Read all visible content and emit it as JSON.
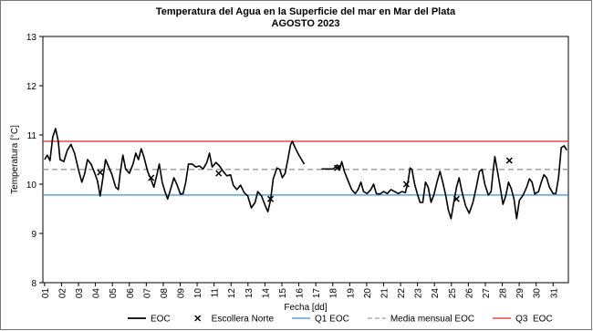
{
  "chart_data": {
    "type": "line",
    "title": "Temperatura del Agua en la Superficie del mar en Mar del Plata",
    "subtitle": "AGOSTO 2023",
    "x_label": "Fecha [dd]",
    "y_label": "Temperatura [°C]",
    "xlim": [
      0.9,
      31.9
    ],
    "ylim": [
      8,
      13
    ],
    "yticks": [
      8,
      9,
      10,
      11,
      12,
      13
    ],
    "xticks": [
      {
        "value": 1,
        "label": "01"
      },
      {
        "value": 2,
        "label": "02"
      },
      {
        "value": 3,
        "label": "03"
      },
      {
        "value": 4,
        "label": "04"
      },
      {
        "value": 5,
        "label": "05"
      },
      {
        "value": 6,
        "label": "06"
      },
      {
        "value": 7,
        "label": "07"
      },
      {
        "value": 8,
        "label": "08"
      },
      {
        "value": 9,
        "label": "09"
      },
      {
        "value": 10,
        "label": "10"
      },
      {
        "value": 11,
        "label": "11"
      },
      {
        "value": 12,
        "label": "12"
      },
      {
        "value": 13,
        "label": "13"
      },
      {
        "value": 14,
        "label": "14"
      },
      {
        "value": 15,
        "label": "15"
      },
      {
        "value": 16,
        "label": "16"
      },
      {
        "value": 17,
        "label": "17"
      },
      {
        "value": 18,
        "label": "18"
      },
      {
        "value": 19,
        "label": "19"
      },
      {
        "value": 20,
        "label": "20"
      },
      {
        "value": 21,
        "label": "21"
      },
      {
        "value": 22,
        "label": "22"
      },
      {
        "value": 23,
        "label": "23"
      },
      {
        "value": 24,
        "label": "24"
      },
      {
        "value": 25,
        "label": "25"
      },
      {
        "value": 26,
        "label": "26"
      },
      {
        "value": 27,
        "label": "27"
      },
      {
        "value": 28,
        "label": "28"
      },
      {
        "value": 29,
        "label": "29"
      },
      {
        "value": 30,
        "label": "30"
      },
      {
        "value": 31,
        "label": "31"
      }
    ],
    "series": [
      {
        "name": "EOC",
        "kind": "line",
        "color": "#000000",
        "x": [
          1.0,
          1.16,
          1.32,
          1.48,
          1.65,
          1.81,
          1.91,
          2.13,
          2.34,
          2.56,
          2.77,
          2.99,
          3.2,
          3.37,
          3.53,
          3.74,
          3.96,
          4.12,
          4.28,
          4.44,
          4.6,
          4.76,
          4.98,
          5.19,
          5.35,
          5.46,
          5.62,
          5.78,
          6.0,
          6.22,
          6.38,
          6.54,
          6.7,
          6.86,
          7.08,
          7.24,
          7.45,
          7.61,
          7.77,
          7.94,
          8.1,
          8.26,
          8.47,
          8.63,
          8.8,
          9.01,
          9.17,
          9.33,
          9.49,
          9.71,
          9.92,
          10.14,
          10.35,
          10.57,
          10.73,
          10.89,
          11.11,
          11.32,
          11.54,
          11.75,
          11.97,
          12.13,
          12.34,
          12.56,
          12.77,
          12.99,
          13.2,
          13.42,
          13.58,
          13.8,
          14.01,
          14.17,
          14.33,
          14.49,
          14.71,
          14.87,
          15.03,
          15.19,
          15.35,
          15.52,
          15.62,
          15.78,
          16.0,
          16.16,
          16.32,
          16.8,
          17.34,
          17.72,
          18.04,
          18.26,
          18.42,
          18.53,
          18.69,
          18.9,
          19.12,
          19.33,
          19.49,
          19.66,
          19.82,
          20.03,
          20.25,
          20.41,
          20.57,
          20.78,
          21.0,
          21.22,
          21.43,
          21.65,
          21.86,
          22.08,
          22.29,
          22.45,
          22.56,
          22.67,
          22.83,
          22.99,
          23.15,
          23.31,
          23.47,
          23.63,
          23.8,
          23.96,
          24.17,
          24.33,
          24.49,
          24.66,
          24.82,
          24.98,
          25.14,
          25.3,
          25.46,
          25.62,
          25.84,
          26.05,
          26.27,
          26.48,
          26.65,
          26.81,
          26.97,
          27.18,
          27.34,
          27.45,
          27.56,
          27.72,
          27.88,
          28.04,
          28.2,
          28.37,
          28.53,
          28.69,
          28.85,
          29.01,
          29.23,
          29.44,
          29.6,
          29.76,
          29.92,
          30.14,
          30.3,
          30.46,
          30.62,
          30.78,
          31.0,
          31.16,
          31.32,
          31.48,
          31.65,
          31.81
        ],
        "values": [
          10.5,
          10.59,
          10.48,
          10.96,
          11.13,
          10.87,
          10.5,
          10.46,
          10.69,
          10.81,
          10.63,
          10.31,
          10.04,
          10.22,
          10.5,
          10.41,
          10.22,
          10.07,
          9.76,
          10.13,
          10.5,
          10.37,
          10.19,
          9.94,
          9.89,
          10.22,
          10.59,
          10.31,
          10.22,
          10.41,
          10.63,
          10.5,
          10.72,
          10.56,
          10.26,
          10.13,
          9.94,
          10.17,
          10.41,
          10.04,
          9.85,
          9.7,
          9.94,
          10.13,
          10.0,
          9.8,
          9.81,
          10.04,
          10.41,
          10.41,
          10.35,
          10.37,
          10.31,
          10.44,
          10.63,
          10.35,
          10.44,
          10.37,
          10.26,
          10.17,
          10.19,
          9.98,
          9.89,
          9.98,
          9.83,
          9.76,
          9.52,
          9.63,
          9.85,
          9.76,
          9.57,
          9.44,
          9.67,
          10.11,
          10.33,
          10.3,
          10.13,
          10.22,
          10.5,
          10.81,
          10.87,
          10.74,
          10.59,
          10.5,
          10.41,
          null,
          10.31,
          10.31,
          10.31,
          10.39,
          10.31,
          10.46,
          10.26,
          10.07,
          9.89,
          9.81,
          9.89,
          10.04,
          9.85,
          9.81,
          9.89,
          10.0,
          9.81,
          9.8,
          9.85,
          9.81,
          9.89,
          9.85,
          9.81,
          9.85,
          9.83,
          10.07,
          10.33,
          10.3,
          10.0,
          9.81,
          9.63,
          9.63,
          10.04,
          9.94,
          9.63,
          9.78,
          10.07,
          10.26,
          10.04,
          9.78,
          9.48,
          9.3,
          9.63,
          9.94,
          10.13,
          9.85,
          9.56,
          9.41,
          9.63,
          9.96,
          10.26,
          10.3,
          10.0,
          9.78,
          9.85,
          10.22,
          10.56,
          10.26,
          9.94,
          9.59,
          9.76,
          10.04,
          9.91,
          9.7,
          9.3,
          9.67,
          9.78,
          9.94,
          10.11,
          10.04,
          9.8,
          9.85,
          10.04,
          10.19,
          10.13,
          9.94,
          9.81,
          9.81,
          10.13,
          10.74,
          10.78,
          10.69
        ]
      },
      {
        "name": "Escollera Norte",
        "kind": "marker",
        "color": "#000000",
        "x": [
          4.28,
          7.29,
          11.27,
          14.33,
          18.26,
          22.34,
          25.3,
          28.42
        ],
        "values": [
          10.24,
          10.13,
          10.22,
          9.7,
          10.33,
          10.0,
          9.7,
          10.48
        ]
      },
      {
        "name": "Q1 EOC",
        "kind": "hline",
        "color": "#3a8fd6",
        "value": 9.78
      },
      {
        "name": "Media mensual EOC",
        "kind": "hline",
        "color": "#9a9a9a",
        "dashed": true,
        "value": 10.3
      },
      {
        "name": "Q3  EOC",
        "kind": "hline",
        "color": "#e8202a",
        "value": 10.87
      }
    ]
  }
}
